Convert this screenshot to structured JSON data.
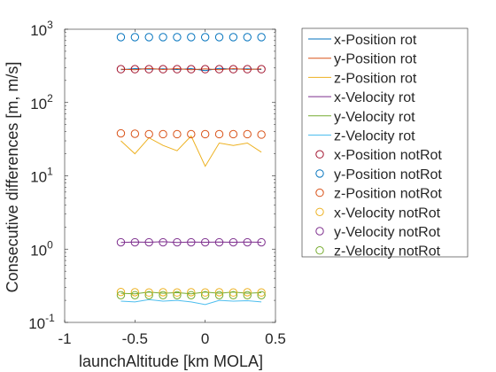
{
  "chart_data": {
    "type": "line",
    "xlabel": "launchAltitude [km MOLA]",
    "ylabel": "Consecutive differences [m, m/s]",
    "xlim": [
      -1,
      0.5
    ],
    "ylim": [
      0.1,
      1000
    ],
    "yscale": "log",
    "grid": false,
    "legend_position": "outside-right",
    "x_ticks": [
      -1,
      -0.5,
      0,
      0.5
    ],
    "x_tick_labels": [
      "-1",
      "-0.5",
      "0",
      "0.5"
    ],
    "y_ticks": [
      0.1,
      1,
      10,
      100,
      1000
    ],
    "y_tick_bases": [
      "10",
      "10",
      "10",
      "10",
      "10"
    ],
    "y_tick_exponents": [
      "-1",
      "0",
      "1",
      "2",
      "3"
    ],
    "x": [
      -0.6,
      -0.5,
      -0.4,
      -0.3,
      -0.2,
      -0.1,
      0.0,
      0.1,
      0.2,
      0.3,
      0.4
    ],
    "series": [
      {
        "name": "x-Position rot",
        "style": "line",
        "color": "#0072BD",
        "values": [
          280,
          290,
          285,
          288,
          282,
          290,
          272,
          292,
          285,
          288,
          282
        ]
      },
      {
        "name": "y-Position rot",
        "style": "line",
        "color": "#D95319",
        "values": [
          285,
          280,
          292,
          282,
          290,
          280,
          288,
          280,
          290,
          282,
          288
        ]
      },
      {
        "name": "z-Position rot",
        "style": "line",
        "color": "#EDB120",
        "values": [
          30,
          20,
          33,
          26,
          22,
          35,
          13.5,
          28,
          26,
          28,
          21
        ]
      },
      {
        "name": "x-Velocity rot",
        "style": "line",
        "color": "#7E2F8E",
        "values": [
          1.23,
          1.25,
          1.24,
          1.26,
          1.23,
          1.25,
          1.24,
          1.25,
          1.24,
          1.25,
          1.24
        ]
      },
      {
        "name": "y-Velocity rot",
        "style": "line",
        "color": "#77AC30",
        "values": [
          0.25,
          0.245,
          0.26,
          0.25,
          0.255,
          0.245,
          0.26,
          0.25,
          0.26,
          0.25,
          0.255
        ]
      },
      {
        "name": "z-Velocity rot",
        "style": "line",
        "color": "#4DBEEE",
        "values": [
          0.195,
          0.19,
          0.205,
          0.195,
          0.2,
          0.19,
          0.175,
          0.2,
          0.195,
          0.198,
          0.19
        ]
      },
      {
        "name": "x-Position notRot",
        "style": "marker",
        "color": "#A2142F",
        "values": [
          285,
          285,
          285,
          285,
          285,
          285,
          285,
          285,
          285,
          285,
          285
        ]
      },
      {
        "name": "y-Position notRot",
        "style": "marker",
        "color": "#0072BD",
        "values": [
          780,
          780,
          780,
          780,
          780,
          780,
          780,
          780,
          780,
          780,
          780
        ]
      },
      {
        "name": "z-Position notRot",
        "style": "marker",
        "color": "#D95319",
        "values": [
          38,
          37.5,
          37,
          37,
          37,
          37,
          37,
          37,
          37,
          37,
          36.5
        ]
      },
      {
        "name": "x-Velocity notRot",
        "style": "marker",
        "color": "#EDB120",
        "values": [
          0.26,
          0.258,
          0.256,
          0.258,
          0.256,
          0.258,
          0.256,
          0.258,
          0.256,
          0.258,
          0.256
        ]
      },
      {
        "name": "y-Velocity notRot",
        "style": "marker",
        "color": "#7E2F8E",
        "values": [
          1.24,
          1.24,
          1.24,
          1.24,
          1.24,
          1.24,
          1.24,
          1.24,
          1.24,
          1.24,
          1.24
        ]
      },
      {
        "name": "z-Velocity notRot",
        "style": "marker",
        "color": "#77AC30",
        "values": [
          0.235,
          0.235,
          0.235,
          0.235,
          0.235,
          0.235,
          0.235,
          0.235,
          0.235,
          0.235,
          0.235
        ]
      }
    ]
  }
}
